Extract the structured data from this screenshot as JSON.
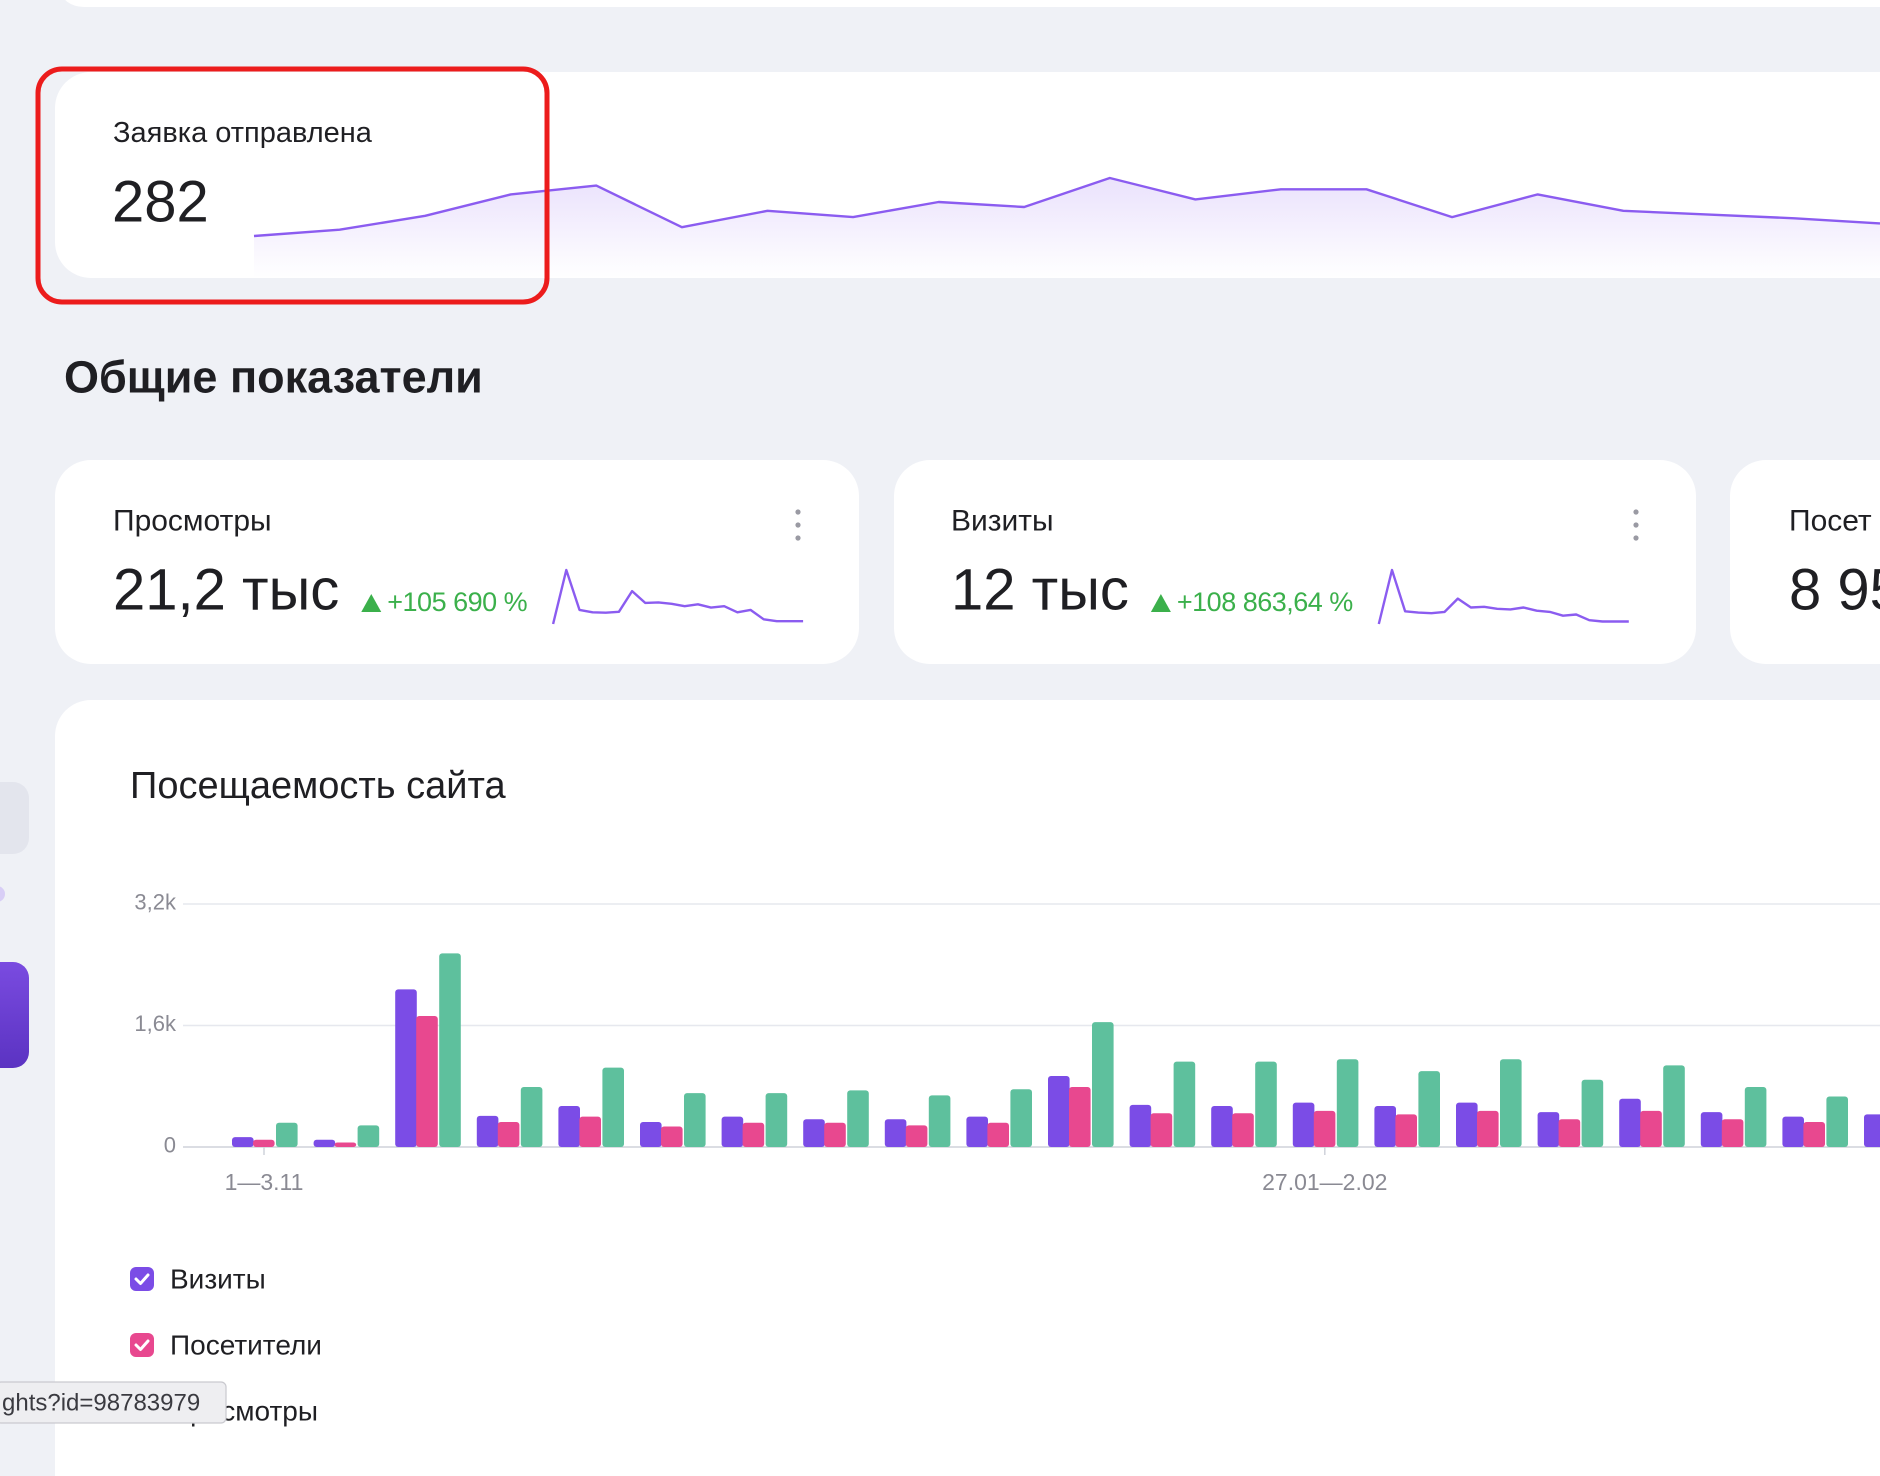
{
  "goal_card": {
    "title": "Заявка отправлена",
    "value": "282",
    "sparkline": [
      3,
      8,
      19,
      36,
      43,
      10,
      23,
      18,
      30,
      26,
      49,
      32,
      40,
      40,
      18,
      36,
      23,
      20,
      17,
      13
    ]
  },
  "section_title": "Общие показатели",
  "metric_cards": [
    {
      "title": "Просмотры",
      "value": "21,2 тыс",
      "change": "+105 690 %",
      "sparkline": [
        0,
        1150,
        300,
        250,
        240,
        260,
        700,
        450,
        460,
        430,
        380,
        420,
        350,
        380,
        250,
        300,
        100,
        60,
        60,
        60
      ]
    },
    {
      "title": "Визиты",
      "value": "12 тыс",
      "change": "+108 863,64 %",
      "sparkline": [
        0,
        850,
        200,
        180,
        170,
        190,
        400,
        260,
        270,
        240,
        230,
        260,
        210,
        190,
        130,
        150,
        60,
        40,
        40,
        40
      ]
    },
    {
      "title": "Посет",
      "value": "8 95"
    }
  ],
  "traffic_chart": {
    "type": "bar",
    "title": "Посещаемость сайта",
    "categories": [
      "1—3.11",
      null,
      null,
      null,
      null,
      null,
      null,
      null,
      null,
      null,
      null,
      null,
      null,
      "27.01—2.02",
      null,
      null,
      null,
      null,
      null,
      null,
      null
    ],
    "series": [
      {
        "name": "Визиты",
        "color": "#7b4ce6",
        "values": [
          130,
          95,
          2075,
          410,
          540,
          330,
          400,
          365,
          365,
          400,
          935,
          555,
          540,
          585,
          540,
          585,
          460,
          635,
          460,
          400,
          430
        ]
      },
      {
        "name": "Посетители",
        "color": "#e8488f",
        "values": [
          95,
          60,
          1725,
          330,
          400,
          270,
          320,
          320,
          285,
          320,
          790,
          445,
          445,
          475,
          430,
          475,
          365,
          475,
          365,
          330,
          null
        ]
      },
      {
        "name": "Просмотры",
        "color": "#5ec09d",
        "values": [
          320,
          285,
          2550,
          790,
          1045,
          710,
          710,
          745,
          680,
          760,
          1645,
          1125,
          1125,
          1155,
          1000,
          1155,
          885,
          1075,
          790,
          665,
          null
        ]
      }
    ],
    "ylim": [
      0,
      3200
    ],
    "yticks": [
      0,
      {
        "value": 1600,
        "label": "1,6k"
      },
      {
        "value": 3200,
        "label": "3,2k"
      }
    ],
    "grid": true
  },
  "tooltip_url": "ghts?id=98783979"
}
